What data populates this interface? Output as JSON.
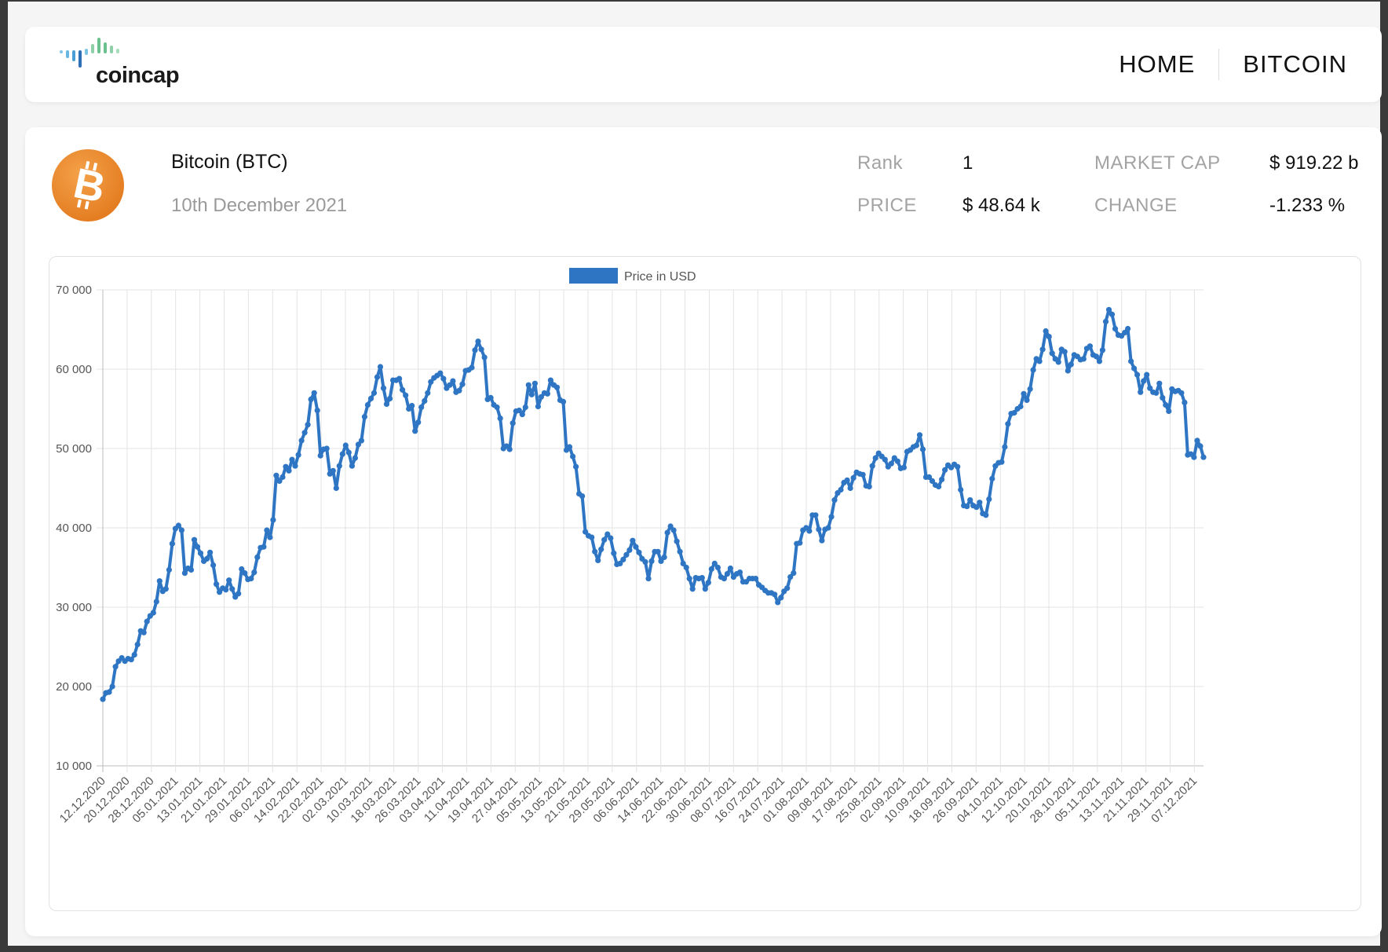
{
  "header": {
    "logo_text": "coincap",
    "nav": [
      {
        "label": "HOME"
      },
      {
        "label": "BITCOIN"
      }
    ]
  },
  "coin": {
    "name": "Bitcoin (BTC)",
    "date": "10th December 2021",
    "icon": "bitcoin-logo",
    "brand_color": "#f7931a"
  },
  "stats": {
    "rank_label": "Rank",
    "rank_value": "1",
    "price_label": "PRICE",
    "price_value": "$ 48.64 k",
    "mcap_label": "MARKET CAP",
    "mcap_value": "$ 919.22 b",
    "change_label": "CHANGE",
    "change_value": "-1.233 %"
  },
  "chart_data": {
    "type": "line",
    "legend": "Price in USD",
    "legend_position": "top-center",
    "line_color": "#2e75c3",
    "grid": true,
    "ylim": [
      10000,
      70000
    ],
    "y_ticks": [
      "10 000",
      "20 000",
      "30 000",
      "40 000",
      "50 000",
      "60 000",
      "70 000"
    ],
    "x_start": "12.12.2020",
    "x_end": "10.12.2021",
    "x_ticks": [
      "12.12.2020",
      "20.12.2020",
      "28.12.2020",
      "05.01.2021",
      "13.01.2021",
      "21.01.2021",
      "29.01.2021",
      "06.02.2021",
      "14.02.2021",
      "22.02.2021",
      "02.03.2021",
      "10.03.2021",
      "18.03.2021",
      "26.03.2021",
      "03.04.2021",
      "11.04.2021",
      "19.04.2021",
      "27.04.2021",
      "05.05.2021",
      "13.05.2021",
      "21.05.2021",
      "29.05.2021",
      "06.06.2021",
      "14.06.2021",
      "22.06.2021",
      "30.06.2021",
      "08.07.2021",
      "16.07.2021",
      "24.07.2021",
      "01.08.2021",
      "09.08.2021",
      "17.08.2021",
      "25.08.2021",
      "02.09.2021",
      "10.09.2021",
      "18.09.2021",
      "26.09.2021",
      "04.10.2021",
      "12.10.2021",
      "20.10.2021",
      "28.10.2021",
      "05.11.2021",
      "13.11.2021",
      "21.11.2021",
      "29.11.2021",
      "07.12.2021"
    ],
    "series": [
      {
        "name": "Price in USD",
        "values": [
          18400,
          19200,
          19300,
          20000,
          22500,
          23200,
          23600,
          23200,
          23500,
          23400,
          24000,
          25300,
          27000,
          26800,
          28200,
          28900,
          29300,
          30700,
          33300,
          32000,
          32300,
          34700,
          38000,
          39900,
          40300,
          39700,
          34300,
          34900,
          34700,
          38500,
          37600,
          36800,
          35800,
          36100,
          36900,
          35300,
          32900,
          31900,
          32400,
          32200,
          33400,
          32300,
          31300,
          31700,
          34800,
          34300,
          33500,
          33600,
          34400,
          36300,
          37500,
          37600,
          39700,
          38800,
          41000,
          46600,
          45900,
          46400,
          47700,
          47200,
          48600,
          47800,
          49200,
          51000,
          52000,
          53000,
          56200,
          57000,
          54800,
          49100,
          49900,
          50000,
          46800,
          47200,
          45000,
          47800,
          49300,
          50400,
          49500,
          47800,
          48800,
          50500,
          51000,
          54000,
          55500,
          56300,
          57000,
          59000,
          60300,
          57600,
          55600,
          56300,
          58600,
          58600,
          58800,
          57400,
          56700,
          55000,
          55400,
          52200,
          53300,
          55200,
          56000,
          57000,
          58400,
          58900,
          59200,
          59500,
          58800,
          57600,
          58000,
          58500,
          57100,
          57300,
          58100,
          59800,
          59900,
          60200,
          62400,
          63500,
          62500,
          61500,
          56200,
          56400,
          55500,
          55200,
          53800,
          50000,
          50300,
          49900,
          53200,
          54700,
          54800,
          54300,
          55200,
          58000,
          56800,
          58200,
          55300,
          56500,
          57000,
          56900,
          58600,
          58000,
          57700,
          56100,
          55900,
          49800,
          50200,
          49000,
          47700,
          44300,
          44000,
          39500,
          39000,
          38800,
          37000,
          35900,
          37300,
          38500,
          39200,
          38700,
          36800,
          35400,
          35500,
          36000,
          36600,
          37200,
          38400,
          37600,
          36900,
          36100,
          35700,
          33600,
          35800,
          37000,
          37000,
          35800,
          36300,
          39400,
          40200,
          39700,
          38300,
          37000,
          35500,
          35000,
          33600,
          32300,
          33700,
          33600,
          33700,
          32300,
          33100,
          34800,
          35500,
          35000,
          33800,
          33600,
          34200,
          34900,
          33800,
          34200,
          34400,
          33200,
          33200,
          33600,
          33600,
          33600,
          32800,
          32500,
          32100,
          31800,
          31800,
          31600,
          30600,
          31200,
          32000,
          32400,
          33800,
          34300,
          38000,
          38100,
          39700,
          40000,
          39600,
          41600,
          41600,
          39800,
          38400,
          39800,
          40000,
          41400,
          43500,
          44400,
          44800,
          45700,
          46000,
          45000,
          46300,
          47000,
          46800,
          46700,
          45300,
          45200,
          47800,
          48800,
          49400,
          49000,
          48600,
          47700,
          48100,
          48800,
          48400,
          47500,
          47600,
          49600,
          49800,
          50200,
          50400,
          51700,
          49900,
          46400,
          46400,
          45900,
          45400,
          45200,
          46100,
          47300,
          47900,
          47600,
          48000,
          47700,
          44800,
          42800,
          42700,
          43500,
          42800,
          42600,
          43200,
          41800,
          41600,
          43600,
          46200,
          47800,
          48200,
          48300,
          50200,
          53100,
          54400,
          54500,
          55000,
          55300,
          56900,
          56100,
          57500,
          59900,
          61300,
          61000,
          62500,
          64800,
          64100,
          62000,
          61300,
          60900,
          62500,
          62200,
          59800,
          60600,
          61800,
          61600,
          61200,
          61300,
          62600,
          62900,
          61800,
          61600,
          61000,
          62400,
          66000,
          67500,
          66900,
          65100,
          64300,
          64200,
          64600,
          65100,
          61000,
          60100,
          59300,
          57100,
          58500,
          59300,
          57600,
          57100,
          57000,
          58200,
          56400,
          55500,
          54700,
          57500,
          57200,
          57300,
          57000,
          55800,
          49200,
          49300,
          48900,
          51000,
          50300,
          48900
        ]
      }
    ]
  }
}
